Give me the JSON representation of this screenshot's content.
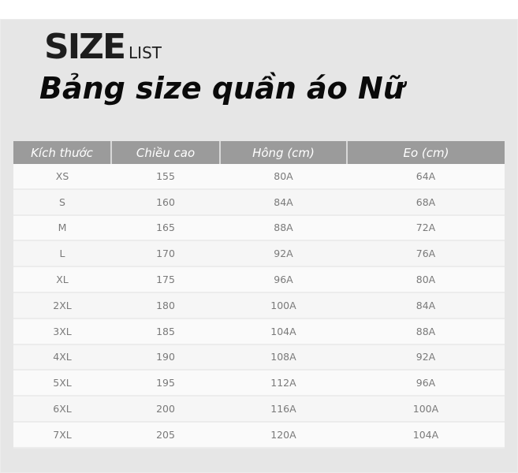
{
  "brand": {
    "big": "SIZE",
    "small": "LIST"
  },
  "title": "Bảng size quần áo Nữ",
  "table": {
    "headers": [
      "Kích thước",
      "Chiều cao",
      "Hông (cm)",
      "Eo (cm)"
    ],
    "rows": [
      [
        "XS",
        "155",
        "80A",
        "64A"
      ],
      [
        "S",
        "160",
        "84A",
        "68A"
      ],
      [
        "M",
        "165",
        "88A",
        "72A"
      ],
      [
        "L",
        "170",
        "92A",
        "76A"
      ],
      [
        "XL",
        "175",
        "96A",
        "80A"
      ],
      [
        "2XL",
        "180",
        "100A",
        "84A"
      ],
      [
        "3XL",
        "185",
        "104A",
        "88A"
      ],
      [
        "4XL",
        "190",
        "108A",
        "92A"
      ],
      [
        "5XL",
        "195",
        "112A",
        "96A"
      ],
      [
        "6XL",
        "200",
        "116A",
        "100A"
      ],
      [
        "7XL",
        "205",
        "120A",
        "104A"
      ]
    ]
  },
  "colors": {
    "header_bg": "#9b9b9b",
    "panel_bg": "#e6e6e6",
    "cell_text": "#7a7a7a"
  }
}
